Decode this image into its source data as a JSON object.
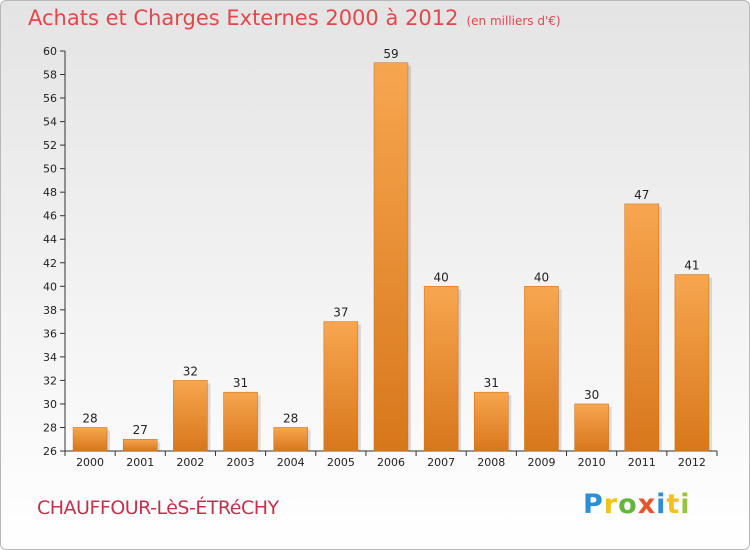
{
  "header": {
    "title": "Achats et Charges Externes 2000 à 2012",
    "unit": "(en milliers d'€)"
  },
  "location": "CHAUFFOUR-LèS-ÉTRéCHY",
  "logo": {
    "text": "Proxiti"
  },
  "colors": {
    "bar_top": "#f7a650",
    "bar_bottom": "#d8771c",
    "title": "#e0484c",
    "location": "#c2324d"
  },
  "chart_data": {
    "type": "bar",
    "title": "Achats et Charges Externes 2000 à 2012",
    "xlabel": "",
    "ylabel": "",
    "categories": [
      "2000",
      "2001",
      "2002",
      "2003",
      "2004",
      "2005",
      "2006",
      "2007",
      "2008",
      "2009",
      "2010",
      "2011",
      "2012"
    ],
    "values": [
      28,
      27,
      32,
      31,
      28,
      37,
      59,
      40,
      31,
      40,
      30,
      47,
      41
    ],
    "ylim": [
      26,
      60
    ],
    "yticks": [
      26,
      28,
      30,
      32,
      34,
      36,
      38,
      40,
      42,
      44,
      46,
      48,
      50,
      52,
      54,
      56,
      58,
      60
    ],
    "grid": false,
    "legend": "none"
  }
}
